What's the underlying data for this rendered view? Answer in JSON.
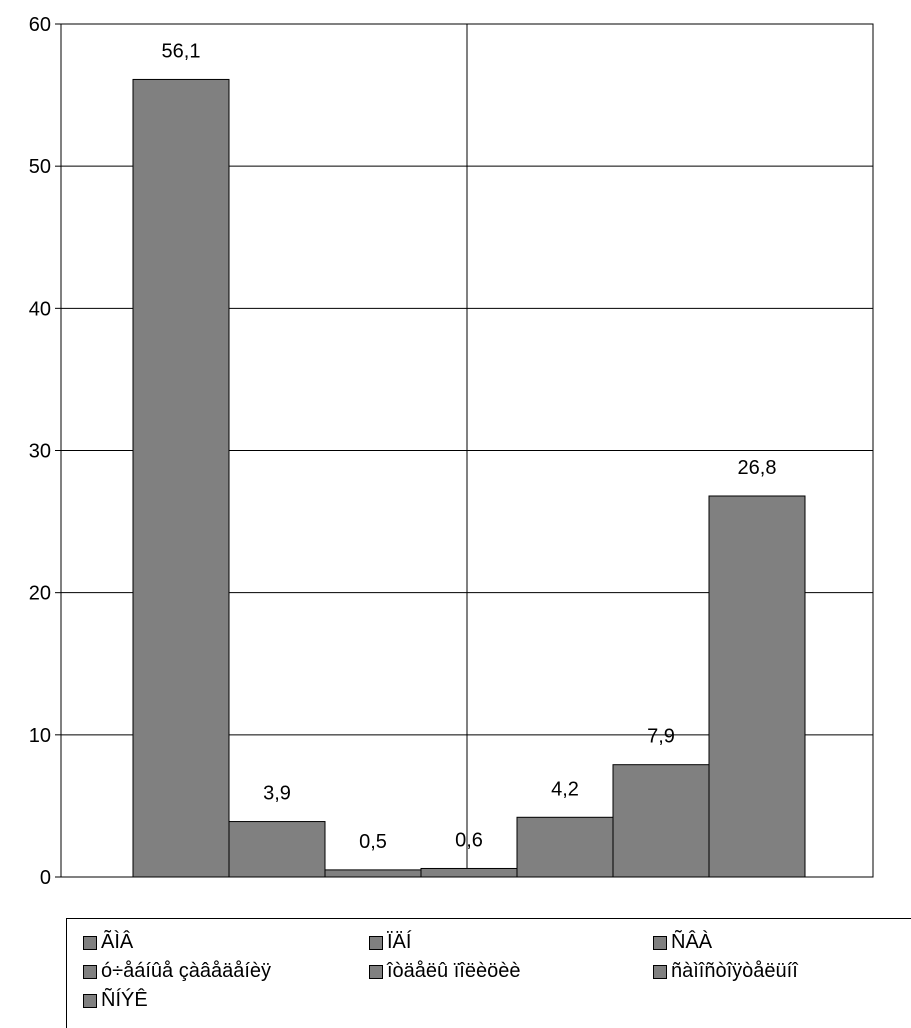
{
  "chart_data": {
    "type": "bar",
    "categories": [
      "ÃÌÂ",
      "ÏÄÍ",
      "ÑÂÀ",
      "ó÷åáíûå çàâåäåíèÿ",
      "îòäåëû ïîëèöèè",
      "ñàìîñòîÿòåëüíî",
      "ÑÍÝÊ"
    ],
    "values": [
      56.1,
      3.9,
      0.5,
      0.6,
      4.2,
      7.9,
      26.8
    ],
    "value_labels": [
      "56,1",
      "3,9",
      "0,5",
      "0,6",
      "4,2",
      "7,9",
      "26,8"
    ],
    "title": "",
    "xlabel": "",
    "ylabel": "",
    "ylim": [
      0,
      60
    ],
    "yticks": [
      0,
      10,
      20,
      30,
      40,
      50,
      60
    ],
    "grid": true,
    "legend": "bottom",
    "bar_color": "#808080",
    "edge_color": "#000000"
  }
}
